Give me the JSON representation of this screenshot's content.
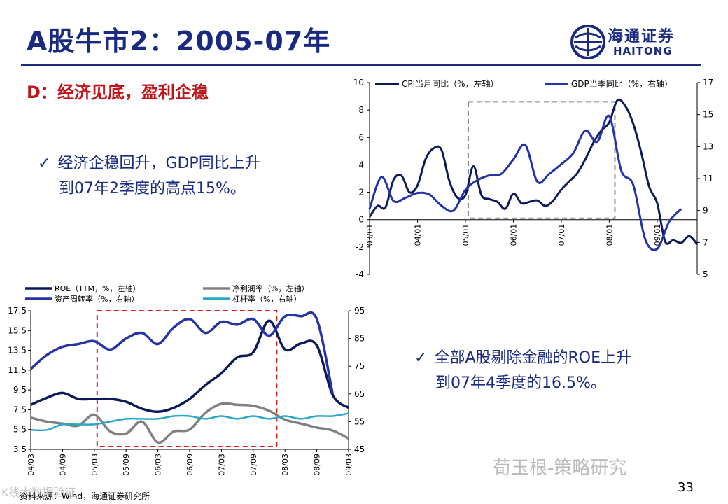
{
  "slide": {
    "title": "A股牛市2：2005-07年",
    "section": "D：经济见底，盈利企稳",
    "bullet1_line1": "经济企稳回升，GDP同比上升",
    "bullet1_line2": "到07年2季度的高点15%。",
    "bullet2_line1": "全部A股剔除金融的ROE上升",
    "bullet2_line2": "到07年4季度的16.5%。",
    "checkmark": "✓",
    "page_number": "33",
    "source": "资料来源：Wind，海通证券研究所",
    "watermark": "荀玉根-策略研究",
    "watermark_left": "K线大数据验证"
  },
  "logo": {
    "name_cn": "海通证券",
    "name_en": "HAITONG"
  },
  "colors": {
    "title_blue": "#1a2a80",
    "section_red": "#c0161b",
    "highlight_grey": "#888888",
    "highlight_red": "#d0201a"
  },
  "chart_data": [
    {
      "type": "line",
      "legend": [
        "CPI当月同比（%，左轴）",
        "GDP当季同比（%，右轴）"
      ],
      "x_ticks": [
        "03/01",
        "04/01",
        "05/01",
        "06/01",
        "07/01",
        "08/01",
        "09/01"
      ],
      "left_ticks": [
        "10",
        "8",
        "6",
        "4",
        "2",
        "0",
        "-2",
        "-4"
      ],
      "right_ticks": [
        "17",
        "15",
        "13",
        "11",
        "9",
        "7",
        "5"
      ],
      "ylim_left": [
        -4,
        10
      ],
      "ylim_right": [
        5,
        17
      ],
      "highlight_box": {
        "from": "05/01",
        "to": "08/01",
        "style": "dashed grey"
      },
      "series": [
        {
          "name": "CPI当月同比（%，左轴）",
          "axis": "left",
          "color": "#0d1a5a",
          "values": [
            [
              0,
              0.2
            ],
            [
              2,
              1.0
            ],
            [
              4,
              0.9
            ],
            [
              6,
              2.9
            ],
            [
              8,
              3.2
            ],
            [
              10,
              2.0
            ],
            [
              12,
              2.5
            ],
            [
              14,
              4.4
            ],
            [
              16,
              5.2
            ],
            [
              18,
              5.1
            ],
            [
              20,
              2.8
            ],
            [
              22,
              1.6
            ],
            [
              24,
              1.8
            ],
            [
              26,
              3.9
            ],
            [
              28,
              1.8
            ],
            [
              30,
              1.5
            ],
            [
              32,
              1.3
            ],
            [
              34,
              0.8
            ],
            [
              36,
              1.9
            ],
            [
              38,
              1.2
            ],
            [
              40,
              1.3
            ],
            [
              42,
              1.4
            ],
            [
              44,
              1.0
            ],
            [
              46,
              1.4
            ],
            [
              48,
              2.2
            ],
            [
              50,
              2.8
            ],
            [
              52,
              3.4
            ],
            [
              54,
              4.4
            ],
            [
              56,
              5.6
            ],
            [
              58,
              6.5
            ],
            [
              60,
              7.1
            ],
            [
              62,
              8.7
            ],
            [
              64,
              8.3
            ],
            [
              66,
              7.0
            ],
            [
              68,
              4.9
            ],
            [
              70,
              2.4
            ],
            [
              72,
              1.2
            ],
            [
              74,
              -1.6
            ],
            [
              76,
              -1.5
            ],
            [
              78,
              -1.7
            ],
            [
              80,
              -1.2
            ],
            [
              82,
              -1.8
            ]
          ]
        },
        {
          "name": "GDP当季同比（%，右轴）",
          "axis": "right",
          "color": "#2433a8",
          "values": [
            [
              0,
              9.1
            ],
            [
              3,
              11.1
            ],
            [
              6,
              9.6
            ],
            [
              9,
              9.8
            ],
            [
              12,
              10.1
            ],
            [
              15,
              10.0
            ],
            [
              18,
              9.3
            ],
            [
              21,
              9.0
            ],
            [
              24,
              10.3
            ],
            [
              27,
              10.9
            ],
            [
              30,
              11.2
            ],
            [
              33,
              11.3
            ],
            [
              36,
              12.2
            ],
            [
              39,
              13.1
            ],
            [
              42,
              10.8
            ],
            [
              45,
              11.3
            ],
            [
              48,
              11.9
            ],
            [
              51,
              12.6
            ],
            [
              54,
              14.0
            ],
            [
              57,
              13.3
            ],
            [
              60,
              14.9
            ],
            [
              63,
              11.5
            ],
            [
              66,
              10.6
            ],
            [
              69,
              7.2
            ],
            [
              72,
              6.6
            ],
            [
              75,
              8.3
            ],
            [
              78,
              9.1
            ]
          ]
        }
      ]
    },
    {
      "type": "line",
      "legend": [
        "ROE（TTM，%，左轴）",
        "净利润率（%，左轴）",
        "资产周转率（%，右轴）",
        "杠杆率（%，右轴）"
      ],
      "x_ticks": [
        "04/03",
        "04/09",
        "05/03",
        "05/09",
        "06/03",
        "06/09",
        "07/03",
        "07/09",
        "08/03",
        "08/09",
        "09/03"
      ],
      "left_ticks": [
        "17.5",
        "15.5",
        "13.5",
        "11.5",
        "9.5",
        "7.5",
        "5.5",
        "3.5"
      ],
      "right_ticks": [
        "95",
        "85",
        "75",
        "65",
        "55",
        "45"
      ],
      "ylim_left": [
        3.5,
        17.5
      ],
      "ylim_right": [
        45,
        95
      ],
      "highlight_box": {
        "from": "05/03",
        "to": "07/12",
        "style": "dashed red"
      },
      "series": [
        {
          "name": "ROE（TTM，%，左轴）",
          "axis": "left",
          "color": "#0d1a5a",
          "values": [
            [
              0,
              8.0
            ],
            [
              1,
              8.7
            ],
            [
              2,
              9.2
            ],
            [
              3,
              8.6
            ],
            [
              4,
              8.6
            ],
            [
              5,
              8.6
            ],
            [
              6,
              8.3
            ],
            [
              7,
              7.6
            ],
            [
              8,
              7.3
            ],
            [
              9,
              7.7
            ],
            [
              10,
              8.6
            ],
            [
              11,
              10.0
            ],
            [
              12,
              11.2
            ],
            [
              13,
              12.8
            ],
            [
              14,
              13.3
            ],
            [
              15,
              16.5
            ],
            [
              16,
              13.6
            ],
            [
              17,
              14.2
            ],
            [
              18,
              14.0
            ],
            [
              19,
              9.0
            ],
            [
              20,
              7.7
            ]
          ]
        },
        {
          "name": "净利润率（%，左轴）",
          "axis": "left",
          "color": "#808080",
          "values": [
            [
              0,
              6.7
            ],
            [
              1,
              6.3
            ],
            [
              2,
              6.1
            ],
            [
              3,
              5.9
            ],
            [
              4,
              7.0
            ],
            [
              5,
              5.3
            ],
            [
              6,
              5.1
            ],
            [
              7,
              6.3
            ],
            [
              8,
              4.2
            ],
            [
              9,
              5.3
            ],
            [
              10,
              5.5
            ],
            [
              11,
              7.2
            ],
            [
              12,
              8.1
            ],
            [
              13,
              8.0
            ],
            [
              14,
              7.9
            ],
            [
              15,
              7.4
            ],
            [
              16,
              6.5
            ],
            [
              17,
              6.1
            ],
            [
              18,
              5.7
            ],
            [
              19,
              5.4
            ],
            [
              20,
              4.6
            ]
          ]
        },
        {
          "name": "资产周转率（%，右轴）",
          "axis": "right",
          "color": "#2433a8",
          "values": [
            [
              0,
              74
            ],
            [
              1,
              79
            ],
            [
              2,
              82
            ],
            [
              3,
              83
            ],
            [
              4,
              84
            ],
            [
              5,
              81
            ],
            [
              6,
              85
            ],
            [
              7,
              87
            ],
            [
              8,
              83
            ],
            [
              9,
              89
            ],
            [
              10,
              92
            ],
            [
              11,
              87
            ],
            [
              12,
              91
            ],
            [
              13,
              90
            ],
            [
              14,
              92
            ],
            [
              15,
              86
            ],
            [
              16,
              93
            ],
            [
              17,
              93
            ],
            [
              18,
              92
            ],
            [
              19,
              65
            ]
          ]
        },
        {
          "name": "杠杆率（%，右轴）",
          "axis": "right",
          "color": "#2aa6c8",
          "values": [
            [
              0,
              52
            ],
            [
              1,
              52
            ],
            [
              2,
              54
            ],
            [
              3,
              54
            ],
            [
              4,
              54
            ],
            [
              5,
              55
            ],
            [
              6,
              56
            ],
            [
              7,
              56
            ],
            [
              8,
              56
            ],
            [
              9,
              57
            ],
            [
              10,
              57
            ],
            [
              11,
              56
            ],
            [
              12,
              57
            ],
            [
              13,
              56
            ],
            [
              14,
              57
            ],
            [
              15,
              56
            ],
            [
              16,
              57
            ],
            [
              17,
              56
            ],
            [
              18,
              57
            ],
            [
              19,
              57
            ],
            [
              20,
              58
            ]
          ]
        }
      ]
    }
  ]
}
